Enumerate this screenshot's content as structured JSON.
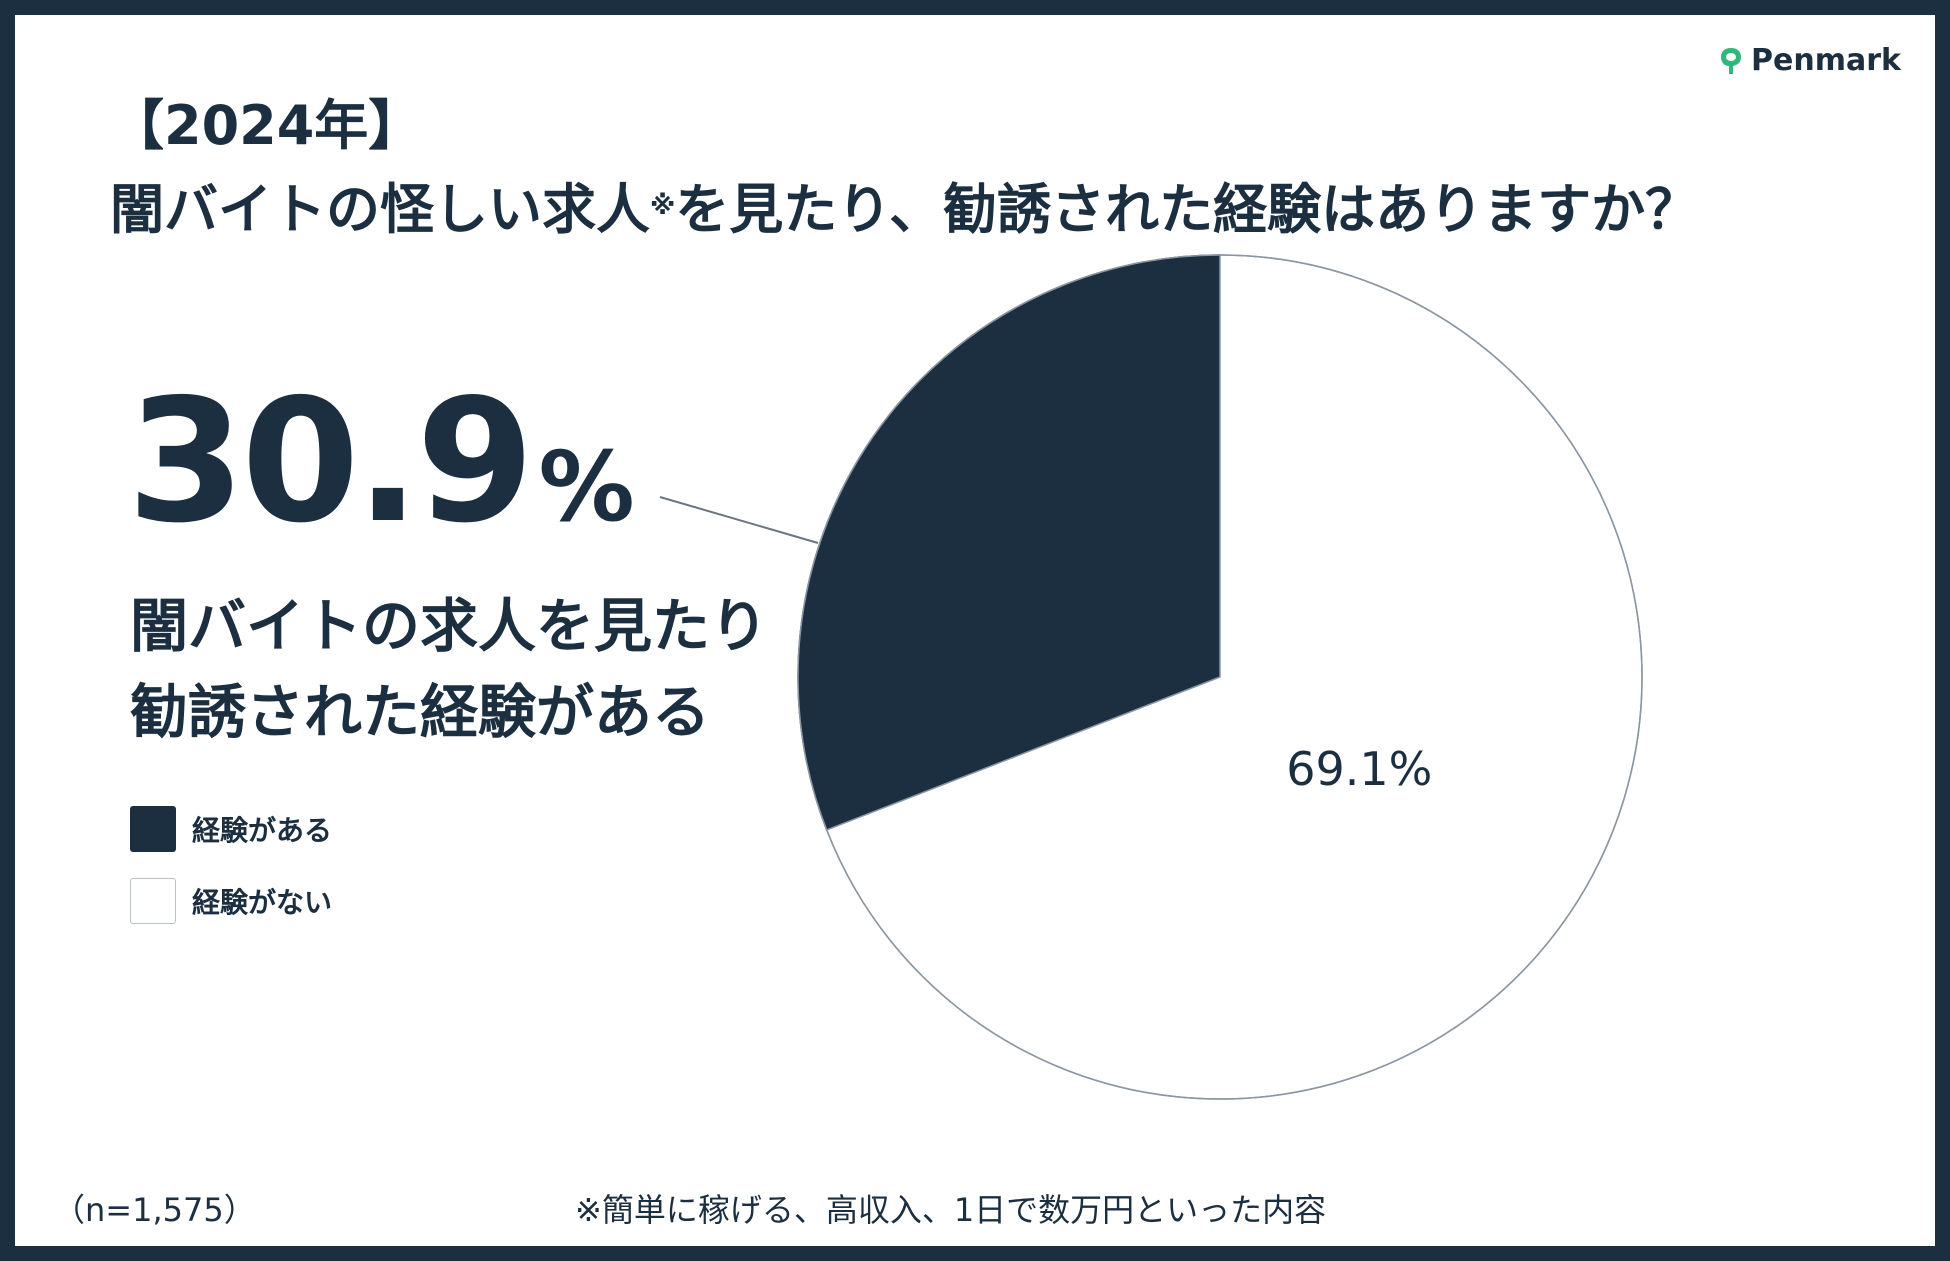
{
  "brand": {
    "name": "Penmark",
    "color": "#2fb87a"
  },
  "title": {
    "year": "【2024年】",
    "question_main": "闇バイトの怪しい求人",
    "question_mark": "※",
    "question_rest": "を見たり、勧誘された経験はありますか？"
  },
  "highlight": {
    "value": "30.9",
    "unit": "%",
    "line1": "闇バイトの求人を見たり",
    "line2": "勧誘された経験がある"
  },
  "legend": [
    {
      "label": "経験がある",
      "color": "#1b2f40"
    },
    {
      "label": "経験がない",
      "color": "#ffffff"
    }
  ],
  "notes": {
    "sample": "（n=1,575）",
    "footnote": "※簡単に稼げる、高収入、1日で数万円といった内容"
  },
  "chart_data": {
    "type": "pie",
    "categories": [
      "経験がある",
      "経験がない"
    ],
    "values": [
      30.9,
      69.1
    ],
    "labels": [
      "30.9%",
      "69.1%"
    ],
    "colors": [
      "#1b2f40",
      "#ffffff"
    ]
  }
}
